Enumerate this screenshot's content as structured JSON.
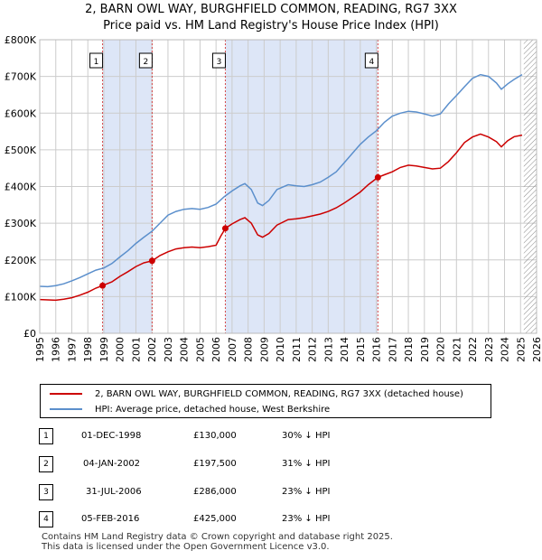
{
  "title_line1": "2, BARN OWL WAY, BURGHFIELD COMMON, READING, RG7 3XX",
  "title_line2": "Price paid vs. HM Land Registry's House Price Index (HPI)",
  "colors": {
    "property": "#cc0000",
    "hpi": "#5b8fcc",
    "shade": "#dde6f7",
    "grid": "#cccccc",
    "hatch": "#888888"
  },
  "chart_data": {
    "type": "line",
    "title": "Price paid vs. HM Land Registry's House Price Index (HPI)",
    "xlabel": "",
    "ylabel": "",
    "xlim": [
      1995,
      2026
    ],
    "ylim": [
      0,
      800000
    ],
    "x_ticks": [
      "1995",
      "1996",
      "1997",
      "1998",
      "1999",
      "2000",
      "2001",
      "2002",
      "2003",
      "2004",
      "2005",
      "2006",
      "2007",
      "2008",
      "2009",
      "2010",
      "2011",
      "2012",
      "2013",
      "2014",
      "2015",
      "2016",
      "2017",
      "2018",
      "2019",
      "2020",
      "2021",
      "2022",
      "2023",
      "2024",
      "2025",
      "2026"
    ],
    "y_ticks": [
      {
        "value": 0,
        "label": "£0"
      },
      {
        "value": 100000,
        "label": "£100K"
      },
      {
        "value": 200000,
        "label": "£200K"
      },
      {
        "value": 300000,
        "label": "£300K"
      },
      {
        "value": 400000,
        "label": "£400K"
      },
      {
        "value": 500000,
        "label": "£500K"
      },
      {
        "value": 600000,
        "label": "£600K"
      },
      {
        "value": 700000,
        "label": "£700K"
      },
      {
        "value": 800000,
        "label": "£800K"
      }
    ],
    "grid": true,
    "hatch_from": 2025.2,
    "shaded_ranges": [
      [
        1998.92,
        2002.01
      ],
      [
        2006.58,
        2016.1
      ]
    ],
    "series": [
      {
        "name": "2, BARN OWL WAY, BURGHFIELD COMMON, READING, RG7 3XX (detached house)",
        "color": "#cc0000",
        "points": [
          [
            1995,
            92000
          ],
          [
            1995.5,
            91000
          ],
          [
            1996,
            90000
          ],
          [
            1996.5,
            93000
          ],
          [
            1997,
            97000
          ],
          [
            1997.5,
            104000
          ],
          [
            1998,
            112000
          ],
          [
            1998.5,
            123000
          ],
          [
            1998.92,
            130000
          ],
          [
            1999.5,
            140000
          ],
          [
            2000,
            155000
          ],
          [
            2000.5,
            168000
          ],
          [
            2001,
            182000
          ],
          [
            2001.5,
            192000
          ],
          [
            2002.01,
            197500
          ],
          [
            2002.5,
            212000
          ],
          [
            2003,
            222000
          ],
          [
            2003.5,
            230000
          ],
          [
            2004,
            233000
          ],
          [
            2004.5,
            235000
          ],
          [
            2005,
            233000
          ],
          [
            2005.5,
            236000
          ],
          [
            2006,
            240000
          ],
          [
            2006.3,
            265000
          ],
          [
            2006.58,
            286000
          ],
          [
            2007,
            298000
          ],
          [
            2007.5,
            310000
          ],
          [
            2007.8,
            315000
          ],
          [
            2008.2,
            300000
          ],
          [
            2008.6,
            268000
          ],
          [
            2008.9,
            262000
          ],
          [
            2009.3,
            272000
          ],
          [
            2009.8,
            295000
          ],
          [
            2010.5,
            310000
          ],
          [
            2011,
            312000
          ],
          [
            2011.5,
            315000
          ],
          [
            2012,
            320000
          ],
          [
            2012.5,
            325000
          ],
          [
            2013,
            332000
          ],
          [
            2013.5,
            342000
          ],
          [
            2014,
            355000
          ],
          [
            2014.5,
            370000
          ],
          [
            2015,
            385000
          ],
          [
            2015.5,
            405000
          ],
          [
            2016.1,
            425000
          ],
          [
            2016.5,
            432000
          ],
          [
            2017,
            440000
          ],
          [
            2017.5,
            452000
          ],
          [
            2018,
            458000
          ],
          [
            2018.5,
            456000
          ],
          [
            2019,
            452000
          ],
          [
            2019.5,
            448000
          ],
          [
            2020,
            450000
          ],
          [
            2020.5,
            468000
          ],
          [
            2021,
            492000
          ],
          [
            2021.5,
            520000
          ],
          [
            2022,
            535000
          ],
          [
            2022.5,
            543000
          ],
          [
            2023,
            535000
          ],
          [
            2023.5,
            522000
          ],
          [
            2023.8,
            508000
          ],
          [
            2024.2,
            525000
          ],
          [
            2024.6,
            536000
          ],
          [
            2025.1,
            540000
          ]
        ]
      },
      {
        "name": "HPI: Average price, detached house, West Berkshire",
        "color": "#5b8fcc",
        "points": [
          [
            1995,
            128000
          ],
          [
            1995.5,
            127000
          ],
          [
            1996,
            130000
          ],
          [
            1996.5,
            135000
          ],
          [
            1997,
            143000
          ],
          [
            1997.5,
            152000
          ],
          [
            1998,
            162000
          ],
          [
            1998.5,
            172000
          ],
          [
            1999,
            178000
          ],
          [
            1999.5,
            190000
          ],
          [
            2000,
            208000
          ],
          [
            2000.5,
            225000
          ],
          [
            2001,
            245000
          ],
          [
            2001.5,
            262000
          ],
          [
            2002,
            278000
          ],
          [
            2002.5,
            300000
          ],
          [
            2003,
            322000
          ],
          [
            2003.5,
            332000
          ],
          [
            2004,
            338000
          ],
          [
            2004.5,
            340000
          ],
          [
            2005,
            338000
          ],
          [
            2005.5,
            343000
          ],
          [
            2006,
            352000
          ],
          [
            2006.5,
            372000
          ],
          [
            2007,
            388000
          ],
          [
            2007.5,
            402000
          ],
          [
            2007.8,
            408000
          ],
          [
            2008.2,
            392000
          ],
          [
            2008.6,
            355000
          ],
          [
            2008.9,
            348000
          ],
          [
            2009.3,
            362000
          ],
          [
            2009.8,
            392000
          ],
          [
            2010.5,
            405000
          ],
          [
            2011,
            402000
          ],
          [
            2011.5,
            400000
          ],
          [
            2012,
            405000
          ],
          [
            2012.5,
            412000
          ],
          [
            2013,
            425000
          ],
          [
            2013.5,
            440000
          ],
          [
            2014,
            465000
          ],
          [
            2014.5,
            490000
          ],
          [
            2015,
            515000
          ],
          [
            2015.5,
            535000
          ],
          [
            2016,
            552000
          ],
          [
            2016.5,
            575000
          ],
          [
            2017,
            592000
          ],
          [
            2017.5,
            600000
          ],
          [
            2018,
            605000
          ],
          [
            2018.5,
            603000
          ],
          [
            2019,
            598000
          ],
          [
            2019.5,
            592000
          ],
          [
            2020,
            598000
          ],
          [
            2020.5,
            625000
          ],
          [
            2021,
            648000
          ],
          [
            2021.5,
            672000
          ],
          [
            2022,
            695000
          ],
          [
            2022.5,
            705000
          ],
          [
            2023,
            700000
          ],
          [
            2023.5,
            682000
          ],
          [
            2023.8,
            665000
          ],
          [
            2024.2,
            680000
          ],
          [
            2024.6,
            692000
          ],
          [
            2025.1,
            705000
          ]
        ]
      }
    ],
    "sale_markers": [
      {
        "label": "1",
        "x": 1998.92,
        "y": 130000
      },
      {
        "label": "2",
        "x": 2002.01,
        "y": 197500
      },
      {
        "label": "3",
        "x": 2006.58,
        "y": 286000
      },
      {
        "label": "4",
        "x": 2016.1,
        "y": 425000
      }
    ]
  },
  "legend": {
    "property": "2, BARN OWL WAY, BURGHFIELD COMMON, READING, RG7 3XX (detached house)",
    "hpi": "HPI: Average price, detached house, West Berkshire"
  },
  "sales": [
    {
      "num": "1",
      "date": "01-DEC-1998",
      "price": "£130,000",
      "hpi": "30% ↓ HPI"
    },
    {
      "num": "2",
      "date": "04-JAN-2002",
      "price": "£197,500",
      "hpi": "31% ↓ HPI"
    },
    {
      "num": "3",
      "date": "31-JUL-2006",
      "price": "£286,000",
      "hpi": "23% ↓ HPI"
    },
    {
      "num": "4",
      "date": "05-FEB-2016",
      "price": "£425,000",
      "hpi": "23% ↓ HPI"
    }
  ],
  "footer": {
    "line1": "Contains HM Land Registry data © Crown copyright and database right 2025.",
    "line2": "This data is licensed under the Open Government Licence v3.0."
  }
}
